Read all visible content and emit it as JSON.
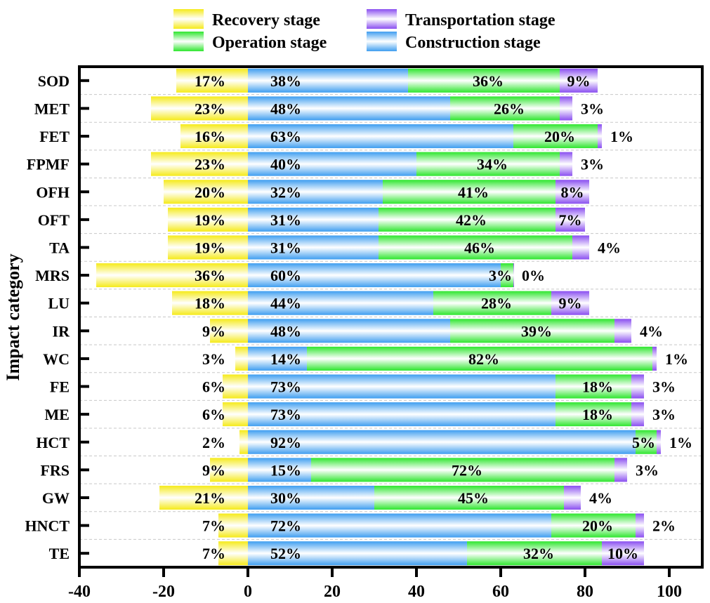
{
  "chart_data": {
    "type": "bar",
    "orientation": "horizontal",
    "stacked": true,
    "title": "",
    "xlabel": "",
    "ylabel": "Impact category",
    "xlim": [
      -40,
      108
    ],
    "xticks": [
      -40,
      -20,
      0,
      20,
      40,
      60,
      80,
      100
    ],
    "xtick_labels": [
      "-40",
      "-20",
      "0",
      "20",
      "40",
      "60",
      "80",
      "100"
    ],
    "grid": "horizontal dashed",
    "legend_position": "top-center",
    "categories": [
      "SOD",
      "MET",
      "FET",
      "FPMF",
      "OFH",
      "OFT",
      "TA",
      "MRS",
      "LU",
      "IR",
      "WC",
      "FE",
      "ME",
      "HCT",
      "FRS",
      "GW",
      "HNCT",
      "TE"
    ],
    "series": [
      {
        "key": "recovery",
        "name": "Recovery stage",
        "color": "#f5ea1a",
        "negative": true,
        "values": [
          17,
          23,
          16,
          23,
          20,
          19,
          19,
          36,
          18,
          9,
          3,
          6,
          6,
          2,
          9,
          21,
          7,
          7
        ]
      },
      {
        "key": "construction",
        "name": "Construction stage",
        "color": "#3f9ef0",
        "values": [
          38,
          48,
          63,
          40,
          32,
          31,
          31,
          60,
          44,
          48,
          14,
          73,
          73,
          92,
          15,
          30,
          72,
          52
        ]
      },
      {
        "key": "operation",
        "name": "Operation stage",
        "color": "#2fe62f",
        "values": [
          36,
          26,
          20,
          34,
          41,
          42,
          46,
          3,
          28,
          39,
          82,
          18,
          18,
          5,
          72,
          45,
          20,
          32
        ]
      },
      {
        "key": "transportation",
        "name": "Transportation stage",
        "color": "#8a4ff0",
        "values": [
          9,
          3,
          1,
          3,
          8,
          7,
          4,
          0,
          9,
          4,
          1,
          3,
          3,
          1,
          3,
          4,
          2,
          10
        ]
      }
    ],
    "value_labels": {
      "recovery": [
        "17%",
        "23%",
        "16%",
        "23%",
        "20%",
        "19%",
        "19%",
        "36%",
        "18%",
        "9%",
        "3%",
        "6%",
        "6%",
        "2%",
        "9%",
        "21%",
        "7%",
        "7%"
      ],
      "construction": [
        "38%",
        "48%",
        "63%",
        "40%",
        "32%",
        "31%",
        "31%",
        "60%",
        "44%",
        "48%",
        "14%",
        "73%",
        "73%",
        "92%",
        "15%",
        "30%",
        "72%",
        "52%"
      ],
      "operation": [
        "36%",
        "26%",
        "20%",
        "34%",
        "41%",
        "42%",
        "46%",
        "3%",
        "28%",
        "39%",
        "82%",
        "18%",
        "18%",
        "5%",
        "72%",
        "45%",
        "20%",
        "32%"
      ],
      "transportation": [
        "9%",
        "3%",
        "1%",
        "3%",
        "8%",
        "7%",
        "4%",
        "0%",
        "9%",
        "4%",
        "1%",
        "3%",
        "3%",
        "1%",
        "3%",
        "4%",
        "2%",
        "10%"
      ]
    },
    "legend": [
      {
        "key": "recovery",
        "label": "Recovery stage"
      },
      {
        "key": "transportation",
        "label": "Transportation stage"
      },
      {
        "key": "operation",
        "label": "Operation stage"
      },
      {
        "key": "construction",
        "label": "Construction stage"
      }
    ]
  }
}
